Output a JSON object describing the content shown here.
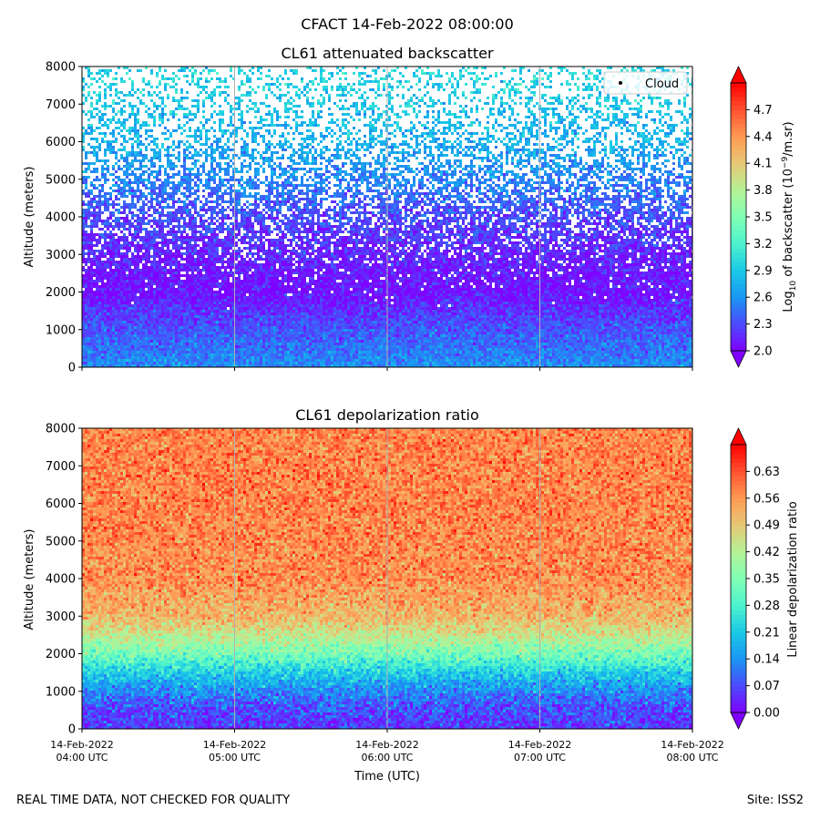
{
  "suptitle": "CFACT 14-Feb-2022 08:00:00",
  "footer": {
    "left": "REAL TIME DATA, NOT CHECKED FOR QUALITY",
    "right": "Site: ISS2"
  },
  "colors": {
    "rainbow": [
      "#8000ff",
      "#4c4afc",
      "#1a96f3",
      "#1ac9e6",
      "#4cf2ce",
      "#80ffb4",
      "#b4f296",
      "#e6c976",
      "#ff9a54",
      "#ff5230",
      "#ff0000"
    ]
  },
  "chart_data": [
    {
      "type": "heatmap",
      "title": "CL61 attenuated backscatter",
      "xlabel": "",
      "ylabel": "Altitude (meters)",
      "ylim": [
        0,
        8000
      ],
      "yticks": [
        0,
        1000,
        2000,
        3000,
        4000,
        5000,
        6000,
        7000,
        8000
      ],
      "xticks": [],
      "legend": {
        "entries": [
          "Cloud"
        ],
        "placement": "top-right"
      },
      "colorbar": {
        "label": "Log10 of backscatter (10^-9/m.sr)",
        "label_parts": {
          "base": "Log",
          "sub": "10",
          "rest1": " of backscatter (10",
          "sup": "−9",
          "rest2": "/m.sr)"
        },
        "range": [
          2.0,
          5.0
        ],
        "ticks": [
          "2.0",
          "2.3",
          "2.6",
          "2.9",
          "3.2",
          "3.5",
          "3.8",
          "4.1",
          "4.4",
          "4.7"
        ],
        "extend": "both"
      },
      "field_profile": [
        {
          "altitude": 0,
          "value": 2.6,
          "coverage": 1.0
        },
        {
          "altitude": 300,
          "value": 2.5,
          "coverage": 1.0
        },
        {
          "altitude": 800,
          "value": 2.4,
          "coverage": 1.0
        },
        {
          "altitude": 1500,
          "value": 2.2,
          "coverage": 1.0
        },
        {
          "altitude": 2000,
          "value": 2.05,
          "coverage": 0.97
        },
        {
          "altitude": 3000,
          "value": 2.15,
          "coverage": 0.85
        },
        {
          "altitude": 4000,
          "value": 2.3,
          "coverage": 0.7
        },
        {
          "altitude": 5000,
          "value": 2.55,
          "coverage": 0.58
        },
        {
          "altitude": 6000,
          "value": 2.75,
          "coverage": 0.45
        },
        {
          "altitude": 7000,
          "value": 2.9,
          "coverage": 0.35
        },
        {
          "altitude": 8000,
          "value": 3.0,
          "coverage": 0.28
        }
      ]
    },
    {
      "type": "heatmap",
      "title": "CL61 depolarization ratio",
      "xlabel": "Time (UTC)",
      "ylabel": "Altitude (meters)",
      "ylim": [
        0,
        8000
      ],
      "yticks": [
        0,
        1000,
        2000,
        3000,
        4000,
        5000,
        6000,
        7000,
        8000
      ],
      "xticks": [
        {
          "line1": "14-Feb-2022",
          "line2": "04:00 UTC"
        },
        {
          "line1": "14-Feb-2022",
          "line2": "05:00 UTC"
        },
        {
          "line1": "14-Feb-2022",
          "line2": "06:00 UTC"
        },
        {
          "line1": "14-Feb-2022",
          "line2": "07:00 UTC"
        },
        {
          "line1": "14-Feb-2022",
          "line2": "08:00 UTC"
        }
      ],
      "xlim": [
        "14-Feb-2022 04:00 UTC",
        "14-Feb-2022 08:00 UTC"
      ],
      "colorbar": {
        "label": "Linear depolarization ratio",
        "range": [
          0.0,
          0.7
        ],
        "ticks": [
          "0.00",
          "0.07",
          "0.14",
          "0.21",
          "0.28",
          "0.35",
          "0.42",
          "0.49",
          "0.56",
          "0.63"
        ],
        "extend": "both"
      },
      "field_profile": [
        {
          "altitude": 0,
          "value": 0.05,
          "coverage": 1.0
        },
        {
          "altitude": 500,
          "value": 0.07,
          "coverage": 1.0
        },
        {
          "altitude": 1000,
          "value": 0.13,
          "coverage": 1.0
        },
        {
          "altitude": 1500,
          "value": 0.22,
          "coverage": 1.0
        },
        {
          "altitude": 2000,
          "value": 0.34,
          "coverage": 1.0
        },
        {
          "altitude": 2500,
          "value": 0.44,
          "coverage": 1.0
        },
        {
          "altitude": 3000,
          "value": 0.52,
          "coverage": 1.0
        },
        {
          "altitude": 4000,
          "value": 0.57,
          "coverage": 1.0
        },
        {
          "altitude": 6000,
          "value": 0.58,
          "coverage": 1.0
        },
        {
          "altitude": 8000,
          "value": 0.58,
          "coverage": 1.0
        }
      ]
    }
  ]
}
